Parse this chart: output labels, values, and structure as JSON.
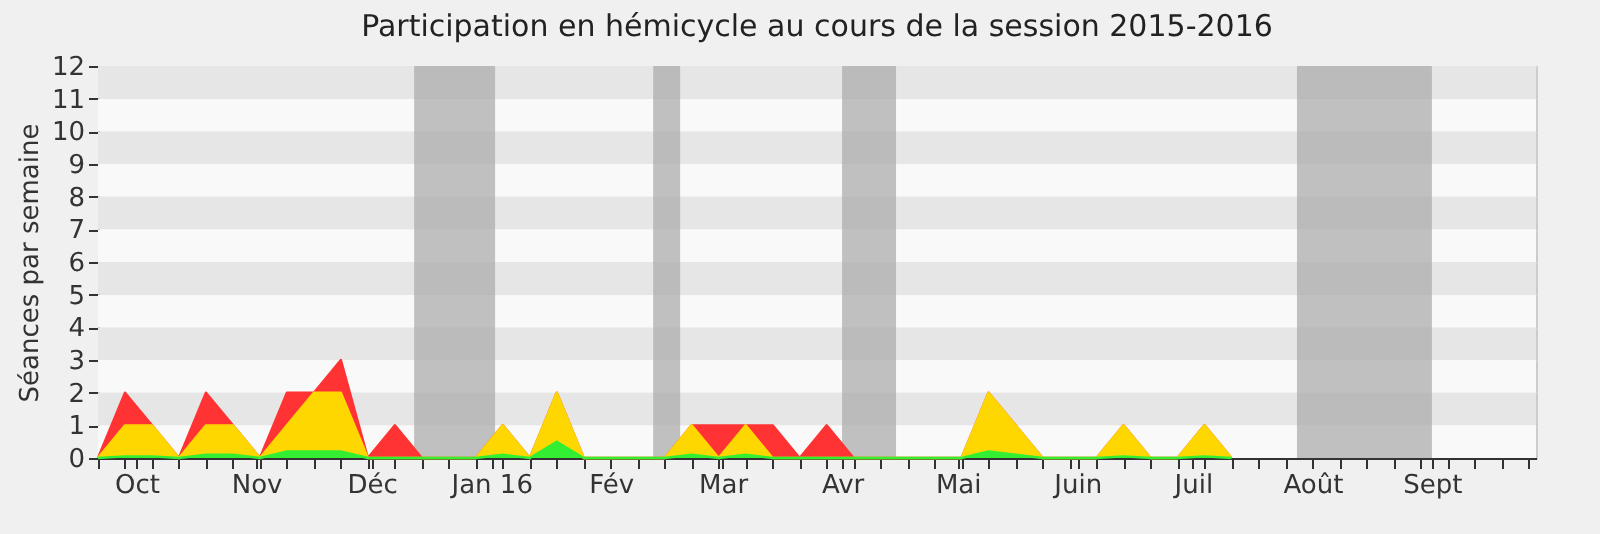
{
  "chart_data": {
    "type": "area",
    "title": "Participation en hémicycle au cours de la session 2015-2016",
    "ylabel": "Séances par semaine",
    "x": [
      "2015-09-21",
      "2015-09-28",
      "2015-10-05",
      "2015-10-12",
      "2015-10-19",
      "2015-10-26",
      "2015-11-02",
      "2015-11-09",
      "2015-11-16",
      "2015-11-23",
      "2015-11-30",
      "2015-12-07",
      "2015-12-14",
      "2015-12-21",
      "2015-12-28",
      "2016-01-04",
      "2016-01-11",
      "2016-01-18",
      "2016-01-25",
      "2016-02-01",
      "2016-02-08",
      "2016-02-15",
      "2016-02-22",
      "2016-02-29",
      "2016-03-07",
      "2016-03-14",
      "2016-03-21",
      "2016-03-28",
      "2016-04-04",
      "2016-04-11",
      "2016-04-18",
      "2016-04-25",
      "2016-05-02",
      "2016-05-09",
      "2016-05-16",
      "2016-05-23",
      "2016-05-30",
      "2016-06-06",
      "2016-06-13",
      "2016-06-20",
      "2016-06-27",
      "2016-07-04",
      "2016-07-11"
    ],
    "series": [
      {
        "color": "#ff3333",
        "values": [
          0,
          2,
          1,
          0,
          2,
          1,
          0,
          2,
          2,
          3,
          0,
          1,
          0,
          0,
          0,
          1,
          0,
          2,
          0,
          0,
          0,
          0,
          1,
          1,
          1,
          1,
          0,
          1,
          0,
          0,
          0,
          0,
          0,
          2,
          1,
          0,
          0,
          0,
          1,
          0,
          0,
          1,
          0
        ]
      },
      {
        "color": "#ffd700",
        "values": [
          0,
          1,
          1,
          0,
          1,
          1,
          0,
          1,
          2,
          2,
          0,
          0,
          0,
          0,
          0,
          1,
          0,
          2,
          0,
          0,
          0,
          0,
          1,
          0,
          1,
          0,
          0,
          0,
          0,
          0,
          0,
          0,
          0,
          2,
          1,
          0,
          0,
          0,
          1,
          0,
          0,
          1,
          0
        ]
      },
      {
        "color": "#33ee33",
        "values": [
          0,
          0.05,
          0.05,
          0,
          0.1,
          0.1,
          0,
          0.2,
          0.2,
          0.2,
          0,
          0,
          0,
          0,
          0,
          0.1,
          0,
          0.5,
          0,
          0,
          0,
          0,
          0.1,
          0,
          0.1,
          0,
          0,
          0,
          0,
          0,
          0,
          0,
          0,
          0.2,
          0.1,
          0,
          0,
          0,
          0.05,
          0,
          0,
          0.05,
          0
        ]
      }
    ],
    "xlim": [
      "2015-09-21",
      "2016-09-28"
    ],
    "xticks": [
      {
        "value": "2015-09-21",
        "label": null
      },
      {
        "value": "2015-09-28",
        "label": null
      },
      {
        "value": "2015-10-01",
        "label": "Oct"
      },
      {
        "value": "2015-10-05",
        "label": null
      },
      {
        "value": "2015-10-12",
        "label": null
      },
      {
        "value": "2015-10-19",
        "label": null
      },
      {
        "value": "2015-10-26",
        "label": null
      },
      {
        "value": "2015-11-01",
        "label": "Nov"
      },
      {
        "value": "2015-11-02",
        "label": null
      },
      {
        "value": "2015-11-09",
        "label": null
      },
      {
        "value": "2015-11-16",
        "label": null
      },
      {
        "value": "2015-11-23",
        "label": null
      },
      {
        "value": "2015-11-30",
        "label": null
      },
      {
        "value": "2015-12-01",
        "label": "Déc"
      },
      {
        "value": "2015-12-07",
        "label": null
      },
      {
        "value": "2015-12-14",
        "label": null
      },
      {
        "value": "2015-12-21",
        "label": null
      },
      {
        "value": "2015-12-28",
        "label": null
      },
      {
        "value": "2016-01-01",
        "label": "Jan 16"
      },
      {
        "value": "2016-01-04",
        "label": null
      },
      {
        "value": "2016-01-11",
        "label": null
      },
      {
        "value": "2016-01-18",
        "label": null
      },
      {
        "value": "2016-01-25",
        "label": null
      },
      {
        "value": "2016-02-01",
        "label": "Fév"
      },
      {
        "value": "2016-02-08",
        "label": null
      },
      {
        "value": "2016-02-15",
        "label": null
      },
      {
        "value": "2016-02-22",
        "label": null
      },
      {
        "value": "2016-02-29",
        "label": null
      },
      {
        "value": "2016-03-01",
        "label": "Mar"
      },
      {
        "value": "2016-03-07",
        "label": null
      },
      {
        "value": "2016-03-14",
        "label": null
      },
      {
        "value": "2016-03-21",
        "label": null
      },
      {
        "value": "2016-03-28",
        "label": null
      },
      {
        "value": "2016-04-01",
        "label": "Avr"
      },
      {
        "value": "2016-04-04",
        "label": null
      },
      {
        "value": "2016-04-11",
        "label": null
      },
      {
        "value": "2016-04-18",
        "label": null
      },
      {
        "value": "2016-04-25",
        "label": null
      },
      {
        "value": "2016-05-01",
        "label": "Mai"
      },
      {
        "value": "2016-05-02",
        "label": null
      },
      {
        "value": "2016-05-09",
        "label": null
      },
      {
        "value": "2016-05-16",
        "label": null
      },
      {
        "value": "2016-05-23",
        "label": null
      },
      {
        "value": "2016-05-30",
        "label": null
      },
      {
        "value": "2016-06-01",
        "label": "Juin"
      },
      {
        "value": "2016-06-06",
        "label": null
      },
      {
        "value": "2016-06-13",
        "label": null
      },
      {
        "value": "2016-06-20",
        "label": null
      },
      {
        "value": "2016-06-27",
        "label": null
      },
      {
        "value": "2016-07-01",
        "label": "Juil"
      },
      {
        "value": "2016-07-04",
        "label": null
      },
      {
        "value": "2016-07-11",
        "label": null
      },
      {
        "value": "2016-07-18",
        "label": null
      },
      {
        "value": "2016-07-25",
        "label": null
      },
      {
        "value": "2016-08-01",
        "label": "Août"
      },
      {
        "value": "2016-08-08",
        "label": null
      },
      {
        "value": "2016-08-15",
        "label": null
      },
      {
        "value": "2016-08-22",
        "label": null
      },
      {
        "value": "2016-08-29",
        "label": null
      },
      {
        "value": "2016-09-01",
        "label": "Sept"
      },
      {
        "value": "2016-09-05",
        "label": null
      },
      {
        "value": "2016-09-12",
        "label": null
      },
      {
        "value": "2016-09-19",
        "label": null
      },
      {
        "value": "2016-09-26",
        "label": null
      }
    ],
    "ylim": [
      0,
      12
    ],
    "yticks": [
      0,
      1,
      2,
      3,
      4,
      5,
      6,
      7,
      8,
      9,
      10,
      11,
      12
    ],
    "grid": "y",
    "bands": [
      {
        "axis": "x",
        "from": "2015-12-12",
        "to": "2016-01-02",
        "color": "#a8a8a8"
      },
      {
        "axis": "x",
        "from": "2016-02-12",
        "to": "2016-02-19",
        "color": "#a8a8a8"
      },
      {
        "axis": "x",
        "from": "2016-04-01",
        "to": "2016-04-15",
        "color": "#a8a8a8"
      },
      {
        "axis": "x",
        "from": "2016-07-28",
        "to": "2016-09-01",
        "color": "#a8a8a8"
      }
    ]
  }
}
